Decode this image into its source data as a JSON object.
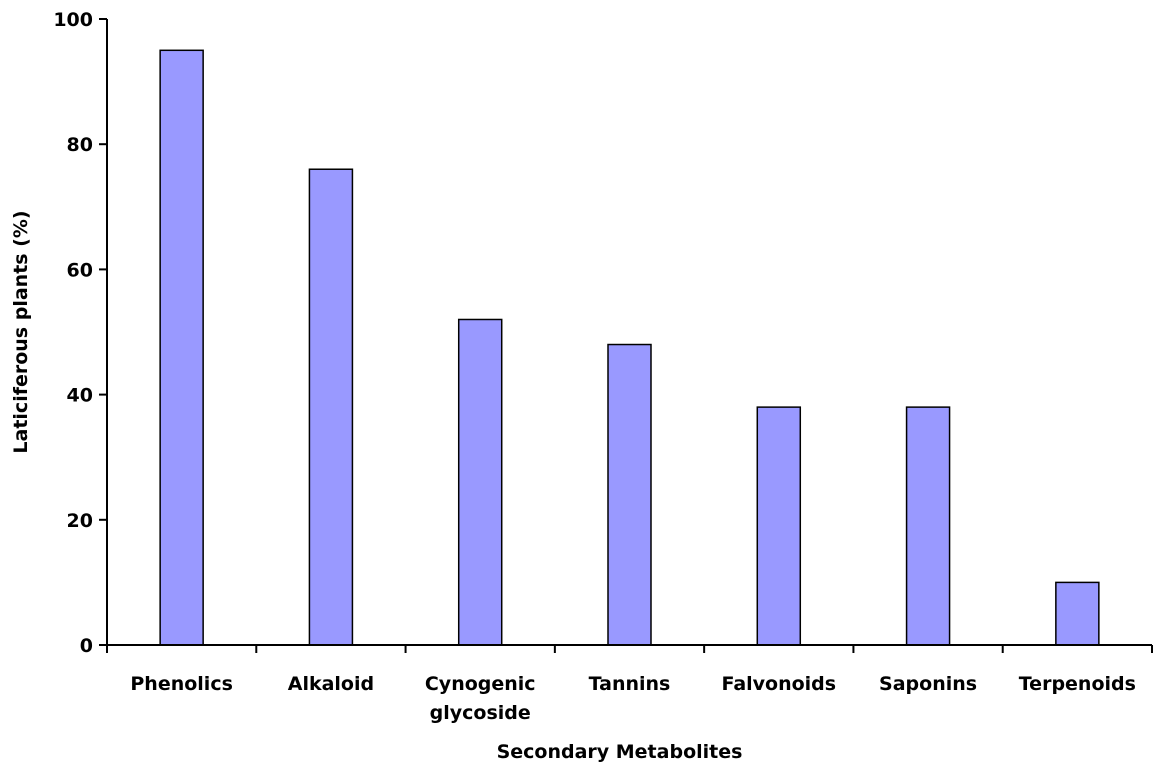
{
  "chart_data": {
    "type": "bar",
    "categories": [
      [
        "Phenolics"
      ],
      [
        "Alkaloid"
      ],
      [
        "Cynogenic",
        "glycoside"
      ],
      [
        "Tannins"
      ],
      [
        "Falvonoids"
      ],
      [
        "Saponins"
      ],
      [
        "Terpenoids"
      ]
    ],
    "values": [
      95,
      76,
      52,
      48,
      38,
      38,
      10
    ],
    "xlabel": "Secondary Metabolites",
    "ylabel": "Laticiferous plants (%)",
    "ylim": [
      0,
      100
    ],
    "yticks": [
      0,
      20,
      40,
      60,
      80,
      100
    ],
    "bar_color": "#9999ff",
    "grid": false,
    "legend": "none"
  }
}
